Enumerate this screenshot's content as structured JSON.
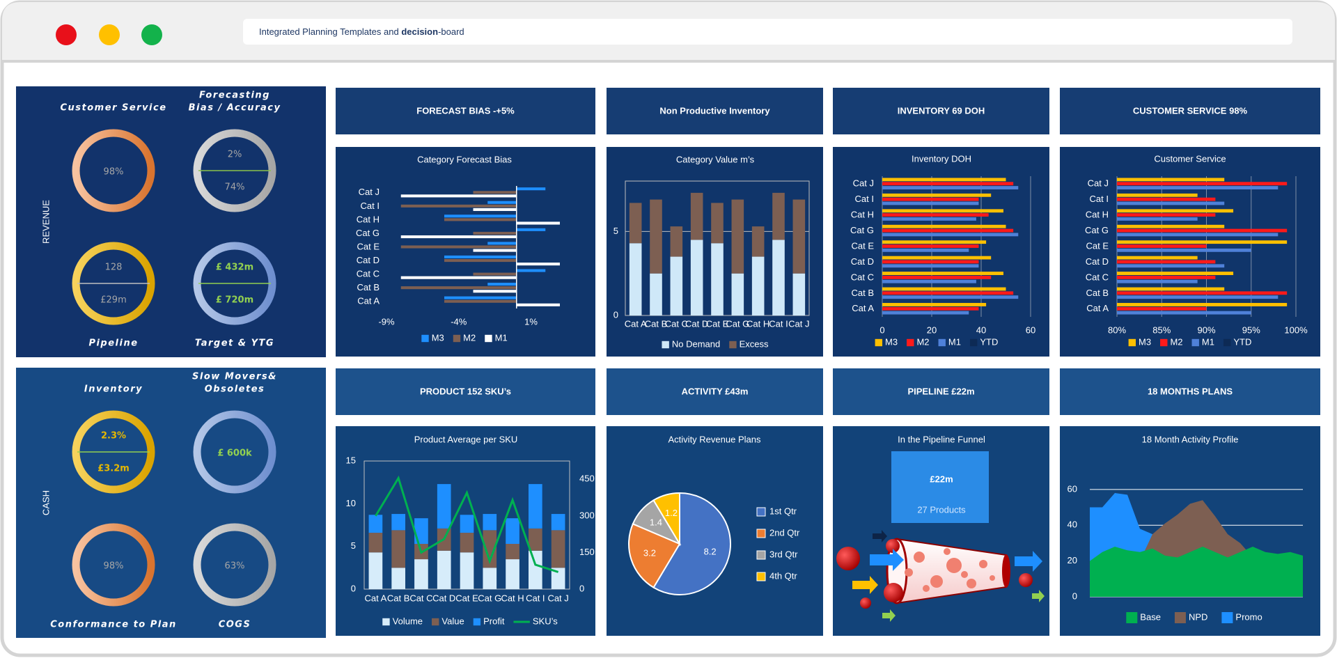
{
  "header": {
    "title_start": "Integrated Planning Templates and",
    "title_bold": "decision",
    "title_end": "-board"
  },
  "kpi_panels": [
    {
      "label": "REVENUE",
      "gauges": [
        {
          "title": [
            "Customer Service"
          ],
          "texts": [
            "98%"
          ]
        },
        {
          "title": [
            "Forecasting",
            "Bias / Accuracy"
          ],
          "texts": [
            "2%",
            "74%"
          ]
        },
        {
          "title": [
            "Pipeline"
          ],
          "texts": [
            "128",
            "£29m"
          ]
        },
        {
          "title": [
            "Target & YTG"
          ],
          "texts": [
            "£ 432m",
            "£ 720m"
          ]
        }
      ]
    },
    {
      "label": "CASH",
      "gauges": [
        {
          "title": [
            "Inventory"
          ],
          "texts": [
            "2.3%",
            "£3.2m"
          ]
        },
        {
          "title": [
            "Slow Movers&",
            "Obsoletes"
          ],
          "texts": [
            "£ 600k"
          ]
        },
        {
          "title": [
            "Conformance to Plan"
          ],
          "texts": [
            "98%"
          ]
        },
        {
          "title": [
            "COGS"
          ],
          "texts": [
            "63%"
          ]
        }
      ]
    }
  ],
  "tiles": [
    "FORECAST BIAS -+5%",
    "Non Productive Inventory",
    "INVENTORY 69 DOH",
    "CUSTOMER SERVICE 98%",
    "PRODUCT 152 SKU’s",
    "ACTIVITY £43m",
    "PIPELINE £22m",
    "18 MONTHS PLANS"
  ],
  "pipeline_card": {
    "title": "In the Pipeline Funnel",
    "amount": "£22m",
    "detail": "27 Products"
  },
  "chart_data": [
    {
      "type": "bar",
      "orientation": "horizontal",
      "title": "Category Forecast Bias",
      "categories": [
        "Cat A",
        "Cat B",
        "Cat C",
        "Cat D",
        "Cat E",
        "Cat G",
        "Cat H",
        "Cat I",
        "Cat J"
      ],
      "series": [
        {
          "name": "M3",
          "color": "#1e8fff",
          "values": [
            -5,
            -2,
            2,
            -5,
            -2,
            2,
            -5,
            -2,
            2
          ]
        },
        {
          "name": "M2",
          "color": "#7d5f52",
          "values": [
            -5,
            -8,
            -3,
            -5,
            -8,
            -3,
            -5,
            -8,
            -3
          ]
        },
        {
          "name": "M1",
          "color": "#ffffff",
          "values": [
            3,
            -3,
            -8,
            3,
            -3,
            -8,
            3,
            -3,
            -8
          ]
        }
      ],
      "xlim": [
        -9,
        3
      ],
      "xticks": [
        {
          "value": -9,
          "label": "-9%"
        },
        {
          "value": -4,
          "label": "-4%"
        },
        {
          "value": 1,
          "label": "1%"
        }
      ],
      "grid": false,
      "legend": "bottom"
    },
    {
      "type": "bar",
      "stacked": true,
      "title": "Category Value  m’s",
      "categories": [
        "Cat A",
        "Cat B",
        "Cat C",
        "Cat D",
        "Cat E",
        "Cat G",
        "Cat H",
        "Cat I",
        "Cat J"
      ],
      "series": [
        {
          "name": "No Demand",
          "color": "#cfe8f8",
          "values": [
            4.3,
            2.5,
            3.5,
            4.5,
            4.3,
            2.5,
            3.5,
            4.5,
            2.5
          ]
        },
        {
          "name": "Excess",
          "color": "#7d5f52",
          "values": [
            2.4,
            4.4,
            1.8,
            2.8,
            2.4,
            4.4,
            1.8,
            2.8,
            4.4
          ]
        }
      ],
      "ylim": [
        0,
        8
      ],
      "yticks": [
        0,
        5
      ],
      "grid": true,
      "legend": "bottom"
    },
    {
      "type": "bar",
      "orientation": "horizontal",
      "title": "Inventory  DOH",
      "categories": [
        "Cat A",
        "Cat B",
        "Cat C",
        "Cat D",
        "Cat E",
        "Cat G",
        "Cat H",
        "Cat I",
        "Cat J"
      ],
      "series": [
        {
          "name": "M3",
          "color": "#ffc000",
          "values": [
            42,
            50,
            49,
            44,
            42,
            50,
            49,
            44,
            50
          ]
        },
        {
          "name": "M2",
          "color": "#ff1a1a",
          "values": [
            39,
            53,
            44,
            39,
            39,
            53,
            43,
            39,
            53
          ]
        },
        {
          "name": "M1",
          "color": "#4f81d9",
          "values": [
            35,
            55,
            38,
            39,
            35,
            55,
            38,
            39,
            55
          ]
        },
        {
          "name": "YTD",
          "color": "#0d2a55",
          "values": [
            null,
            null,
            null,
            null,
            null,
            null,
            null,
            null,
            null
          ]
        }
      ],
      "xlim": [
        0,
        60
      ],
      "xticks": [
        0,
        20,
        40,
        60
      ],
      "grid": true,
      "legend": "bottom"
    },
    {
      "type": "bar",
      "orientation": "horizontal",
      "title": "Customer Service",
      "categories": [
        "Cat A",
        "Cat B",
        "Cat C",
        "Cat D",
        "Cat E",
        "Cat G",
        "Cat H",
        "Cat I",
        "Cat J"
      ],
      "series": [
        {
          "name": "M3",
          "color": "#ffc000",
          "values": [
            99,
            92,
            93,
            89,
            99,
            92,
            93,
            89,
            92
          ]
        },
        {
          "name": "M2",
          "color": "#ff1a1a",
          "values": [
            90,
            99,
            91,
            91,
            90,
            99,
            91,
            91,
            99
          ]
        },
        {
          "name": "M1",
          "color": "#4f81d9",
          "values": [
            95,
            98,
            89,
            92,
            95,
            98,
            89,
            92,
            98
          ]
        },
        {
          "name": "YTD",
          "color": "#0d2a55",
          "values": [
            null,
            null,
            null,
            null,
            null,
            null,
            null,
            null,
            null
          ]
        }
      ],
      "xlim": [
        80,
        100
      ],
      "xticks": [
        {
          "value": 80,
          "label": "80%"
        },
        {
          "value": 85,
          "label": "85%"
        },
        {
          "value": 90,
          "label": "90%"
        },
        {
          "value": 95,
          "label": "95%"
        },
        {
          "value": 100,
          "label": "100%"
        }
      ],
      "grid": true,
      "legend": "bottom"
    },
    {
      "type": "bar",
      "stacked": true,
      "title": "Product Average per SKU",
      "categories": [
        "Cat A",
        "Cat B",
        "Cat C",
        "Cat D",
        "Cat E",
        "Cat G",
        "Cat H",
        "Cat I",
        "Cat J"
      ],
      "series": [
        {
          "name": "Volume",
          "color": "#d6ecfa",
          "values": [
            4.3,
            2.5,
            3.5,
            4.5,
            4.3,
            2.5,
            3.5,
            4.5,
            2.5
          ]
        },
        {
          "name": "Value",
          "color": "#7d5f52",
          "values": [
            2.3,
            4.4,
            1.8,
            2.6,
            2.3,
            4.4,
            1.8,
            2.6,
            4.4
          ]
        },
        {
          "name": "Profit",
          "color": "#1e8fff",
          "values": [
            2.1,
            1.9,
            3.0,
            5.2,
            2.1,
            1.9,
            3.0,
            5.2,
            1.9
          ]
        },
        {
          "name": "SKU’s",
          "type": "line",
          "axis": "y2",
          "color": "#00b050",
          "values": [
            300,
            455,
            150,
            205,
            395,
            115,
            365,
            100,
            70
          ]
        }
      ],
      "ylim": [
        0,
        15
      ],
      "yticks": [
        0,
        5,
        10,
        15
      ],
      "y2lim": [
        0,
        525
      ],
      "y2ticks": [
        0,
        150,
        300,
        450
      ],
      "grid": false,
      "legend": "bottom"
    },
    {
      "type": "pie",
      "title": "Activity Revenue Plans",
      "categories": [
        "1st Qtr",
        "2nd Qtr",
        "3rd Qtr",
        "4th Qtr"
      ],
      "values": [
        8.2,
        3.2,
        1.4,
        1.2
      ],
      "colors": [
        "#4472c4",
        "#ed7d31",
        "#a5a5a5",
        "#ffc000"
      ],
      "legend": "right"
    },
    {
      "type": "area",
      "title": "18 Month Activity Profile",
      "categories": [
        null,
        null,
        null,
        null,
        null,
        null,
        null,
        null,
        null,
        null,
        null,
        null,
        null,
        null,
        null,
        null,
        null,
        null
      ],
      "series": [
        {
          "name": "Base",
          "color": "#00b050",
          "values": [
            20,
            25,
            28,
            26,
            25,
            27,
            23,
            22,
            25,
            28,
            25,
            22,
            25,
            28,
            25,
            24,
            25,
            23
          ]
        },
        {
          "name": "NPD",
          "color": "#7d5f52",
          "values": [
            8,
            9,
            10,
            12,
            20,
            35,
            41,
            46,
            52,
            54,
            45,
            35,
            30,
            22,
            20,
            18,
            18,
            17
          ]
        },
        {
          "name": "Promo",
          "color": "#1e8fff",
          "values": [
            50,
            50,
            58,
            57,
            38,
            35,
            37,
            36,
            30,
            25,
            20,
            18,
            16,
            15,
            14,
            14,
            13,
            13
          ]
        }
      ],
      "ylim": [
        0,
        65
      ],
      "yticks": [
        0,
        20,
        40,
        60
      ],
      "grid": true,
      "legend": "bottom"
    }
  ]
}
